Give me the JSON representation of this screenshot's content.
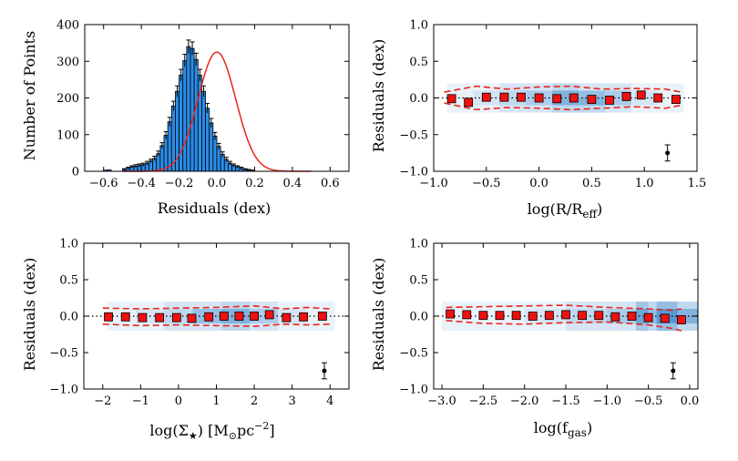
{
  "chart_data": [
    {
      "id": "hist",
      "type": "bar",
      "xlabel": "Residuals (dex)",
      "ylabel": "Number of Points",
      "xlim": [
        -0.7,
        0.7
      ],
      "ylim": [
        0,
        400
      ],
      "xticks": [
        -0.6,
        -0.4,
        -0.2,
        0.0,
        0.2,
        0.4,
        0.6
      ],
      "xtick_labels": [
        "−0.6",
        "−0.4",
        "−0.2",
        "0.0",
        "0.2",
        "0.4",
        "0.6"
      ],
      "yticks": [
        0,
        100,
        200,
        300,
        400
      ],
      "ytick_labels": [
        "0",
        "100",
        "200",
        "300",
        "400"
      ],
      "bin_width": 0.02,
      "bin_start": -0.5,
      "values": [
        5,
        8,
        12,
        14,
        16,
        18,
        22,
        28,
        35,
        48,
        70,
        98,
        135,
        178,
        218,
        262,
        302,
        340,
        335,
        305,
        262,
        218,
        172,
        132,
        96,
        68,
        46,
        32,
        22,
        16,
        12,
        8,
        5,
        3,
        2
      ],
      "extra_bins": [
        {
          "x": -0.6,
          "value": 3
        },
        {
          "x": -0.58,
          "value": 4
        }
      ],
      "errors": [
        2,
        3,
        3,
        4,
        4,
        4,
        5,
        5,
        6,
        7,
        8,
        10,
        12,
        13,
        15,
        16,
        17,
        18,
        18,
        17,
        16,
        15,
        13,
        12,
        10,
        8,
        7,
        6,
        5,
        4,
        3,
        3,
        2,
        2,
        1
      ],
      "fit": {
        "type": "gaussian",
        "amplitude": 325,
        "mean": 0.0,
        "sigma": 0.1,
        "color": "#e8261c"
      },
      "bar_color": "#2b8de8"
    },
    {
      "id": "rreff",
      "type": "scatter",
      "xlabel": "log(R/R",
      "xlabel_sub": "eff",
      "xlabel_close": ")",
      "ylabel": "Residuals (dex)",
      "xlim": [
        -1.0,
        1.5
      ],
      "ylim": [
        -1.0,
        1.0
      ],
      "xticks": [
        -1.0,
        -0.5,
        0.0,
        0.5,
        1.0,
        1.5
      ],
      "xtick_labels": [
        "−1.0",
        "−0.5",
        "0.0",
        "0.5",
        "1.0",
        "1.5"
      ],
      "yticks": [
        -1.0,
        -0.5,
        0.0,
        0.5,
        1.0
      ],
      "ytick_labels": [
        "−1.0",
        "−0.5",
        "0.0",
        "0.5",
        "1.0"
      ],
      "medians": {
        "x": [
          -0.83,
          -0.67,
          -0.5,
          -0.33,
          -0.17,
          0.0,
          0.17,
          0.33,
          0.5,
          0.67,
          0.83,
          0.97,
          1.13,
          1.3
        ],
        "y": [
          -0.01,
          -0.06,
          0.01,
          0.01,
          0.01,
          0.0,
          -0.01,
          0.0,
          -0.02,
          -0.03,
          0.02,
          0.04,
          0.0,
          -0.02
        ]
      },
      "upper": {
        "x": [
          -0.9,
          -0.6,
          -0.3,
          0.0,
          0.3,
          0.6,
          0.9,
          1.2,
          1.35
        ],
        "y": [
          0.08,
          0.16,
          0.12,
          0.15,
          0.16,
          0.12,
          0.13,
          0.12,
          0.08
        ]
      },
      "lower": {
        "x": [
          -0.9,
          -0.6,
          -0.3,
          0.0,
          0.3,
          0.6,
          0.9,
          1.2,
          1.35
        ],
        "y": [
          -0.07,
          -0.16,
          -0.13,
          -0.14,
          -0.16,
          -0.14,
          -0.12,
          -0.14,
          -0.1
        ]
      },
      "density": {
        "x_centers": [
          -0.75,
          -0.5,
          -0.25,
          0.0,
          0.25,
          0.5,
          0.75,
          1.0,
          1.25
        ],
        "y_centers": [
          -0.15,
          -0.05,
          0.05,
          0.15
        ],
        "counts": [
          [
            1,
            1,
            2,
            2,
            3,
            3,
            2,
            1,
            1
          ],
          [
            1,
            2,
            3,
            4,
            6,
            6,
            4,
            2,
            1
          ],
          [
            1,
            2,
            3,
            4,
            6,
            5,
            4,
            2,
            1
          ],
          [
            1,
            1,
            2,
            2,
            3,
            2,
            2,
            1,
            1
          ]
        ]
      },
      "errorbar": {
        "x": 1.22,
        "y": -0.75,
        "err": 0.11
      }
    },
    {
      "id": "sigma",
      "type": "scatter",
      "xlabel": "log(Σ",
      "xlabel_sub": "★",
      "xlabel_close": ") [M",
      "xlabel_sub2": "⊙",
      "xlabel_rest": "pc",
      "xlabel_sup": "−2",
      "xlabel_end": "]",
      "ylabel": "Residuals (dex)",
      "xlim": [
        -2.5,
        4.5
      ],
      "ylim": [
        -1.0,
        1.0
      ],
      "xticks": [
        -2,
        -1,
        0,
        1,
        2,
        3,
        4
      ],
      "xtick_labels": [
        "−2",
        "−1",
        "0",
        "1",
        "2",
        "3",
        "4"
      ],
      "yticks": [
        -1.0,
        -0.5,
        0.0,
        0.5,
        1.0
      ],
      "ytick_labels": [
        "−1.0",
        "−0.5",
        "0.0",
        "0.5",
        "1.0"
      ],
      "medians": {
        "x": [
          -1.85,
          -1.4,
          -0.95,
          -0.5,
          -0.05,
          0.35,
          0.8,
          1.2,
          1.6,
          2.0,
          2.4,
          2.85,
          3.3,
          3.8
        ],
        "y": [
          -0.01,
          -0.01,
          -0.02,
          -0.02,
          -0.02,
          -0.03,
          -0.01,
          0.0,
          0.0,
          0.0,
          0.02,
          -0.02,
          -0.01,
          0.0
        ]
      },
      "upper": {
        "x": [
          -2.0,
          -1.0,
          0.0,
          1.0,
          2.0,
          2.8,
          3.4,
          4.0
        ],
        "y": [
          0.11,
          0.1,
          0.11,
          0.12,
          0.14,
          0.1,
          0.12,
          0.1
        ]
      },
      "lower": {
        "x": [
          -2.0,
          -1.0,
          0.0,
          1.0,
          2.0,
          2.8,
          3.4,
          4.0
        ],
        "y": [
          -0.11,
          -0.13,
          -0.12,
          -0.13,
          -0.14,
          -0.11,
          -0.12,
          -0.11
        ]
      },
      "density": {
        "x_centers": [
          -1.5,
          -0.75,
          0.0,
          0.75,
          1.5,
          2.25,
          3.0,
          3.75
        ],
        "y_centers": [
          -0.15,
          -0.05,
          0.05,
          0.15
        ],
        "counts": [
          [
            1,
            1,
            2,
            2,
            3,
            2,
            1,
            1
          ],
          [
            1,
            2,
            3,
            5,
            6,
            4,
            2,
            1
          ],
          [
            1,
            2,
            3,
            5,
            6,
            4,
            2,
            1
          ],
          [
            1,
            1,
            2,
            2,
            3,
            2,
            1,
            1
          ]
        ]
      },
      "errorbar": {
        "x": 3.85,
        "y": -0.75,
        "err": 0.11
      }
    },
    {
      "id": "fgas",
      "type": "scatter",
      "xlabel": "log(f",
      "xlabel_sub": "gas",
      "xlabel_close": ")",
      "ylabel": "Residuals (dex)",
      "xlim": [
        -3.1,
        0.1
      ],
      "ylim": [
        -1.0,
        1.0
      ],
      "xticks": [
        -3.0,
        -2.5,
        -2.0,
        -1.5,
        -1.0,
        -0.5,
        0.0
      ],
      "xtick_labels": [
        "−3.0",
        "−2.5",
        "−2.0",
        "−1.5",
        "−1.0",
        "−0.5",
        "0.0"
      ],
      "yticks": [
        -1.0,
        -0.5,
        0.0,
        0.5,
        1.0
      ],
      "ytick_labels": [
        "−1.0",
        "−0.5",
        "0.0",
        "0.5",
        "1.0"
      ],
      "medians": {
        "x": [
          -2.9,
          -2.7,
          -2.5,
          -2.3,
          -2.1,
          -1.9,
          -1.7,
          -1.5,
          -1.3,
          -1.1,
          -0.9,
          -0.7,
          -0.5,
          -0.3,
          -0.1
        ],
        "y": [
          0.03,
          0.02,
          0.01,
          0.01,
          0.01,
          0.0,
          0.01,
          0.02,
          0.01,
          0.01,
          -0.01,
          0.0,
          -0.02,
          -0.03,
          -0.05
        ]
      },
      "upper": {
        "x": [
          -2.95,
          -2.5,
          -2.0,
          -1.5,
          -1.0,
          -0.5,
          -0.2,
          -0.1
        ],
        "y": [
          0.12,
          0.13,
          0.14,
          0.15,
          0.12,
          0.1,
          0.08,
          0.1
        ]
      },
      "lower": {
        "x": [
          -2.95,
          -2.5,
          -2.0,
          -1.5,
          -1.0,
          -0.5,
          -0.2,
          -0.1
        ],
        "y": [
          -0.06,
          -0.1,
          -0.11,
          -0.09,
          -0.08,
          -0.12,
          -0.17,
          -0.2
        ]
      },
      "density": {
        "x_centers": [
          -2.75,
          -2.25,
          -1.75,
          -1.25,
          -0.75,
          -0.4,
          -0.15
        ],
        "y_centers": [
          -0.15,
          -0.05,
          0.05,
          0.15
        ],
        "counts": [
          [
            1,
            1,
            1,
            2,
            2,
            3,
            3
          ],
          [
            1,
            1,
            2,
            3,
            4,
            5,
            6
          ],
          [
            1,
            1,
            2,
            3,
            4,
            5,
            6
          ],
          [
            1,
            1,
            1,
            2,
            2,
            3,
            3
          ]
        ]
      },
      "errorbar": {
        "x": -0.2,
        "y": -0.75,
        "err": 0.11
      }
    }
  ]
}
